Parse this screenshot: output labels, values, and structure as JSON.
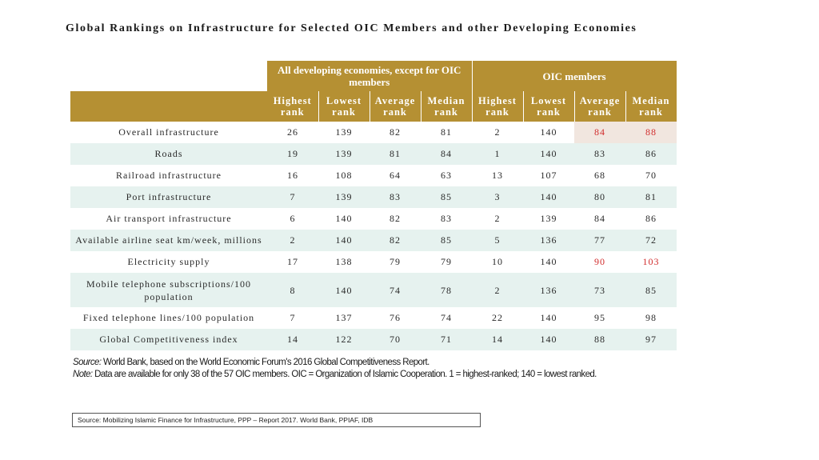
{
  "title": "Global Rankings on Infrastructure for Selected OIC Members and other Developing Economies",
  "chart_data": {
    "type": "table",
    "group_headers": [
      "All developing economies, except for OIC members",
      "OIC members"
    ],
    "column_headers": [
      "Highest rank",
      "Lowest rank",
      "Average rank",
      "Median rank",
      "Highest rank",
      "Lowest rank",
      "Average rank",
      "Median rank"
    ],
    "rows": [
      {
        "label": "Overall infrastructure",
        "values": [
          "26",
          "139",
          "82",
          "81",
          "2",
          "140",
          "84",
          "88"
        ]
      },
      {
        "label": "Roads",
        "values": [
          "19",
          "139",
          "81",
          "84",
          "1",
          "140",
          "83",
          "86"
        ]
      },
      {
        "label": "Railroad infrastructure",
        "values": [
          "16",
          "108",
          "64",
          "63",
          "13",
          "107",
          "68",
          "70"
        ]
      },
      {
        "label": "Port infrastructure",
        "values": [
          "7",
          "139",
          "83",
          "85",
          "3",
          "140",
          "80",
          "81"
        ]
      },
      {
        "label": "Air transport infrastructure",
        "values": [
          "6",
          "140",
          "82",
          "83",
          "2",
          "139",
          "84",
          "86"
        ]
      },
      {
        "label": "Available airline seat km/week, millions",
        "values": [
          "2",
          "140",
          "82",
          "85",
          "5",
          "136",
          "77",
          "72"
        ]
      },
      {
        "label": "Electricity supply",
        "values": [
          "17",
          "138",
          "79",
          "79",
          "10",
          "140",
          "90",
          "103"
        ]
      },
      {
        "label": "Mobile telephone subscriptions/100 population",
        "values": [
          "8",
          "140",
          "74",
          "78",
          "2",
          "136",
          "73",
          "85"
        ]
      },
      {
        "label": "Fixed telephone lines/100 population",
        "values": [
          "7",
          "137",
          "76",
          "74",
          "22",
          "140",
          "95",
          "98"
        ]
      },
      {
        "label": "Global Competitiveness index",
        "values": [
          "14",
          "122",
          "70",
          "71",
          "14",
          "140",
          "88",
          "97"
        ]
      }
    ],
    "highlight_color": "#d12c2c",
    "header_color": "#b59033",
    "stripe_color": "#e6f2ef"
  },
  "notes": {
    "source_label": "Source:",
    "source_text": " World Bank, based on the World Economic Forum's 2016 Global Competitiveness Report.",
    "note_label": "Note:",
    "note_text": " Data are available for only 38 of the 57 OIC members. OIC = Organization of Islamic Cooperation. 1 = highest-ranked; 140 = lowest ranked."
  },
  "source_box": "Source: Mobilizing Islamic Finance for Infrastructure, PPP – Report 2017. World Bank, PPIAF, IDB"
}
